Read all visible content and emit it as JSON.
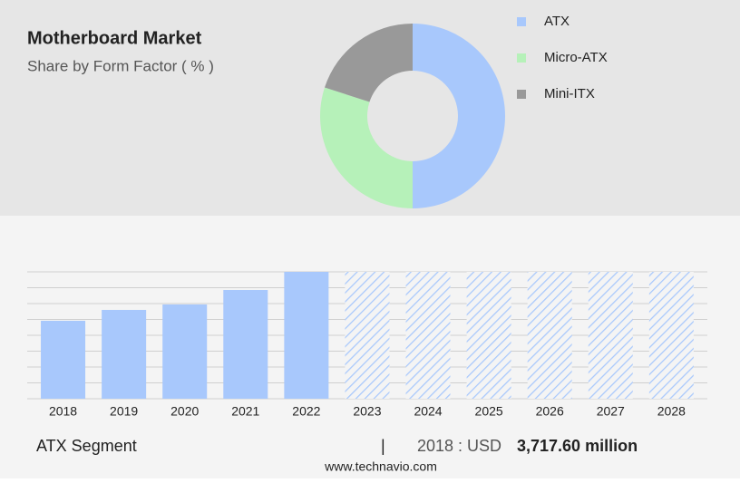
{
  "title": "Motherboard Market",
  "subtitle": "Share by Form Factor ( % )",
  "charts": [
    {
      "type": "donut",
      "categories": [
        "ATX",
        "Micro-ATX",
        "Mini-ITX"
      ],
      "values": [
        50,
        30,
        20
      ],
      "colors": [
        "#a8c8fc",
        "#b6f1b9",
        "#999999"
      ]
    },
    {
      "type": "bar",
      "categories": [
        "2018",
        "2019",
        "2020",
        "2021",
        "2022",
        "2023",
        "2024",
        "2025",
        "2026",
        "2027",
        "2028"
      ],
      "values": [
        3717.6,
        4237,
        4496,
        5188,
        6052,
        null,
        null,
        null,
        null,
        null,
        null
      ],
      "color": "#a8c8fc",
      "ylim": [
        0,
        6052
      ],
      "grid": true
    }
  ],
  "footer": {
    "segment": "ATX Segment",
    "separator": "|",
    "year": "2018 : USD",
    "value": "3,717.60 million",
    "source": "www.technavio.com"
  }
}
